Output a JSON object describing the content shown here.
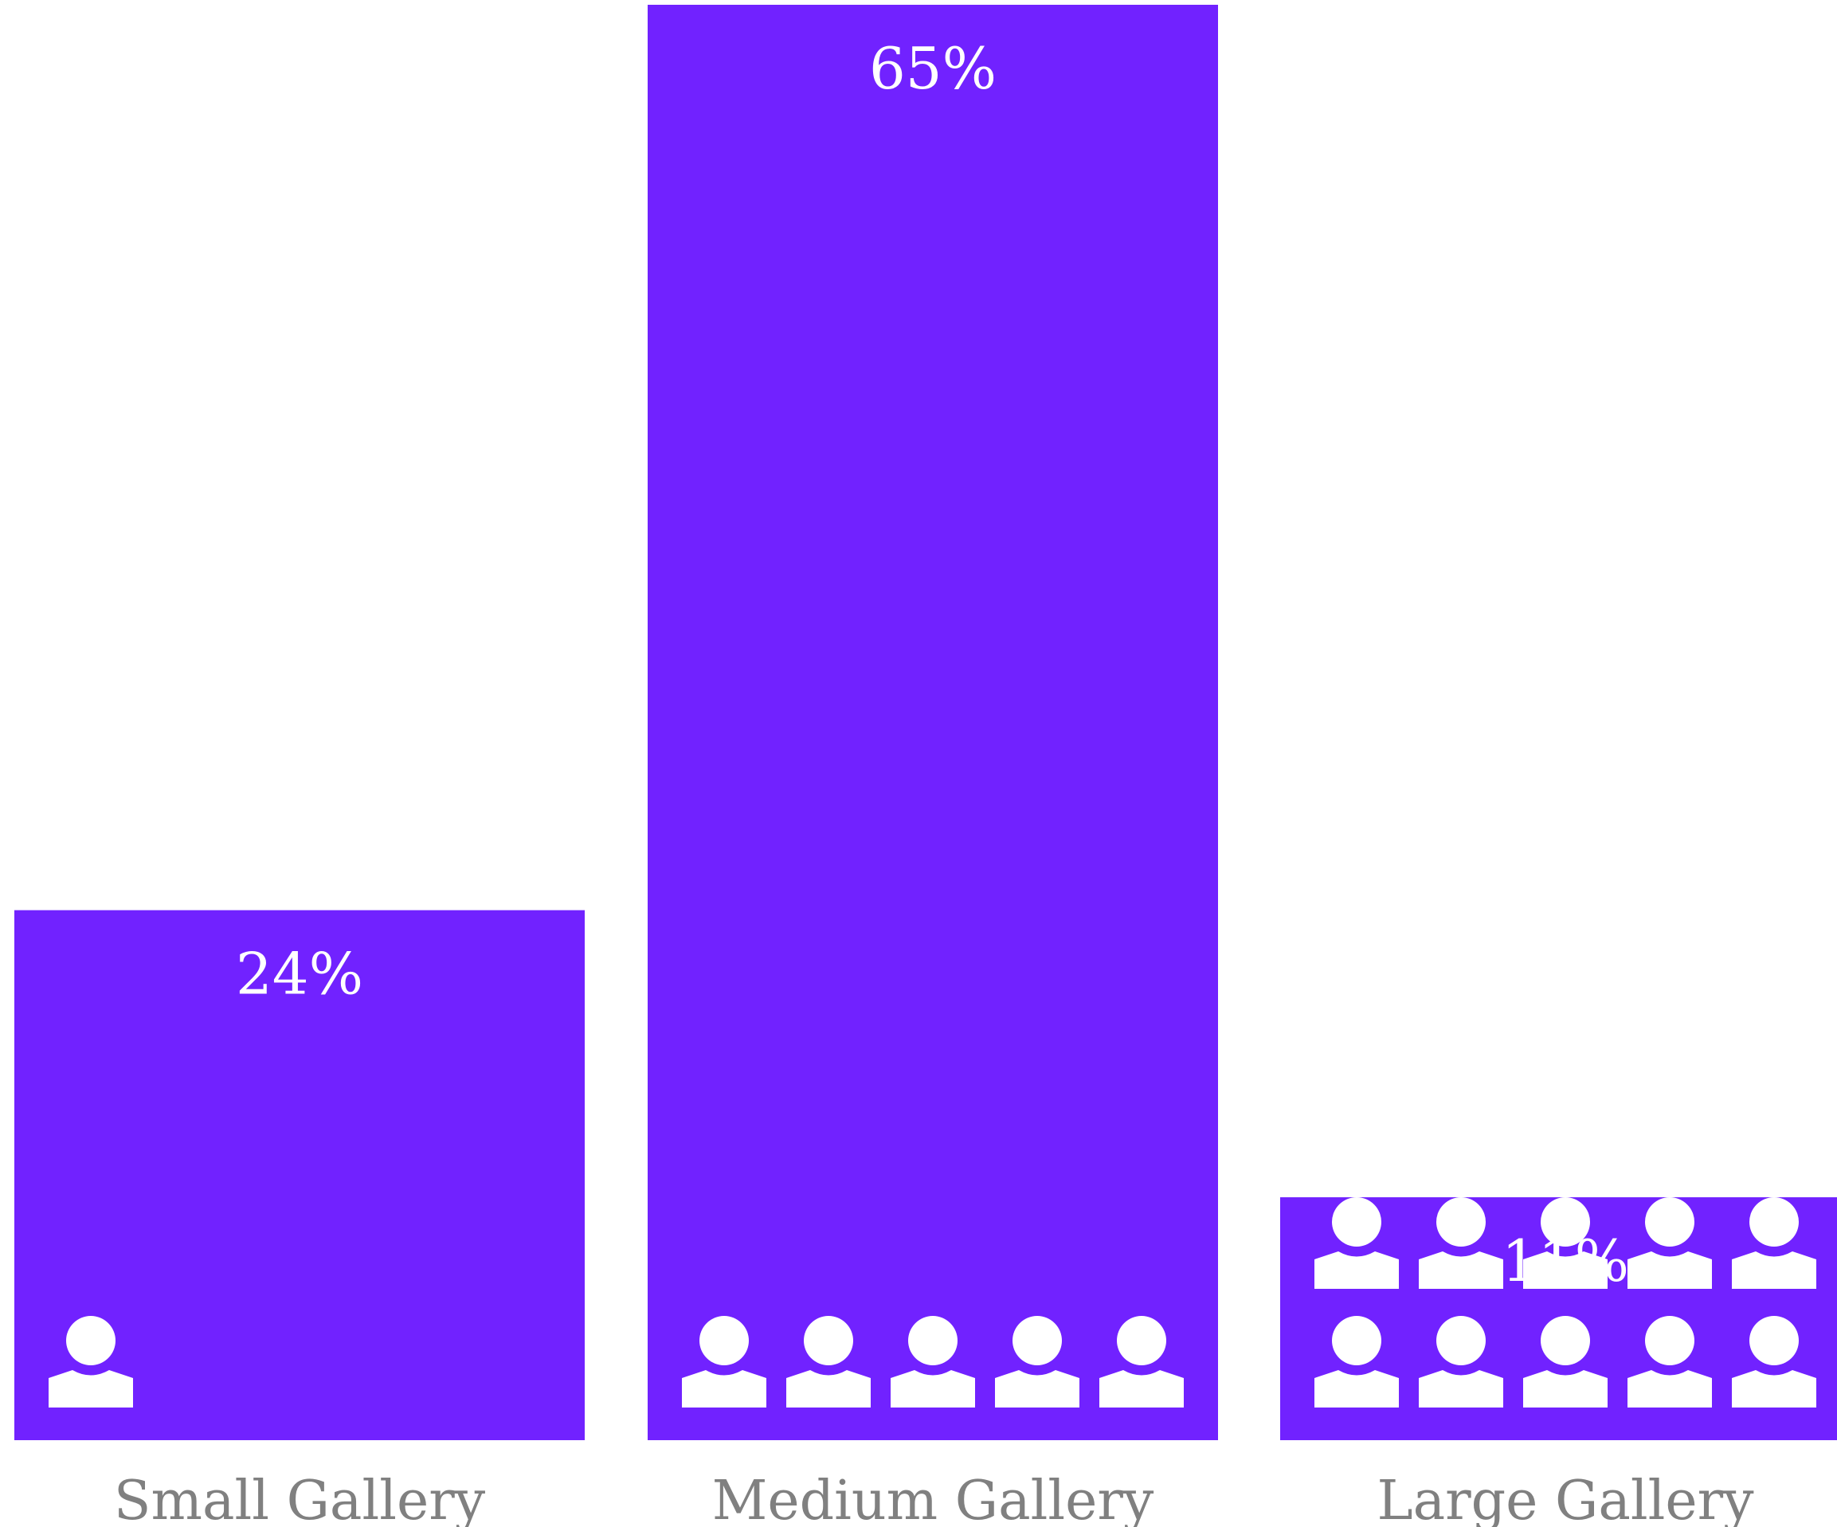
{
  "chart_data": {
    "type": "bar",
    "categories": [
      "Small Gallery",
      "Medium Gallery",
      "Large Gallery"
    ],
    "values": [
      24,
      65,
      11
    ],
    "value_labels": [
      "24%",
      "65%",
      "11%"
    ],
    "icon_counts": [
      1,
      5,
      10
    ],
    "icon": "person-icon",
    "ylim": [
      0,
      65
    ],
    "grid": false,
    "legend": "none",
    "title": "",
    "xlabel": "",
    "ylabel": ""
  },
  "colors": {
    "bar": "#7122FF",
    "value_text": "#FFFFFF",
    "icon": "#FFFFFF",
    "category_text": "#808080",
    "background": "#FFFFFF"
  }
}
